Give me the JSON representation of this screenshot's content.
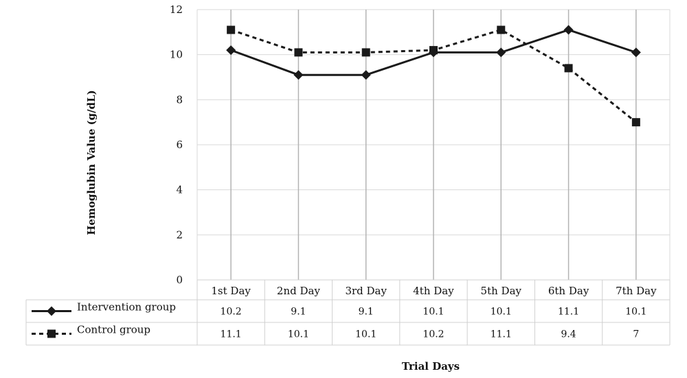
{
  "chart_data": {
    "type": "line",
    "title": "",
    "xlabel": "Trial Days",
    "ylabel": "Hemoglubin Value (g/dL)",
    "ylim": [
      0,
      12
    ],
    "yticks": [
      0,
      2,
      4,
      6,
      8,
      10,
      12
    ],
    "grid": true,
    "legend_placement": "data table rows below chart",
    "categories": [
      "1st Day",
      "2nd Day",
      "3rd Day",
      "4th Day",
      "5th Day",
      "6th Day",
      "7th Day"
    ],
    "series": [
      {
        "name": "Intervention group",
        "values": [
          10.2,
          9.1,
          9.1,
          10.1,
          10.1,
          11.1,
          10.1
        ],
        "labels": [
          "10.2",
          "9.1",
          "9.1",
          "10.1",
          "10.1",
          "11.1",
          "10.1"
        ],
        "line_style": "solid",
        "marker": "diamond",
        "color": "#1a1a1a"
      },
      {
        "name": "Control group",
        "values": [
          11.1,
          10.1,
          10.1,
          10.2,
          11.1,
          9.4,
          7
        ],
        "labels": [
          "11.1",
          "10.1",
          "10.1",
          "10.2",
          "11.1",
          "9.4",
          "7"
        ],
        "line_style": "dashed",
        "marker": "square",
        "color": "#1a1a1a"
      }
    ],
    "colors": {
      "grid": "#d9d9d9",
      "drop_line": "#b3b3b3",
      "table_border": "#d0d0d0"
    }
  }
}
